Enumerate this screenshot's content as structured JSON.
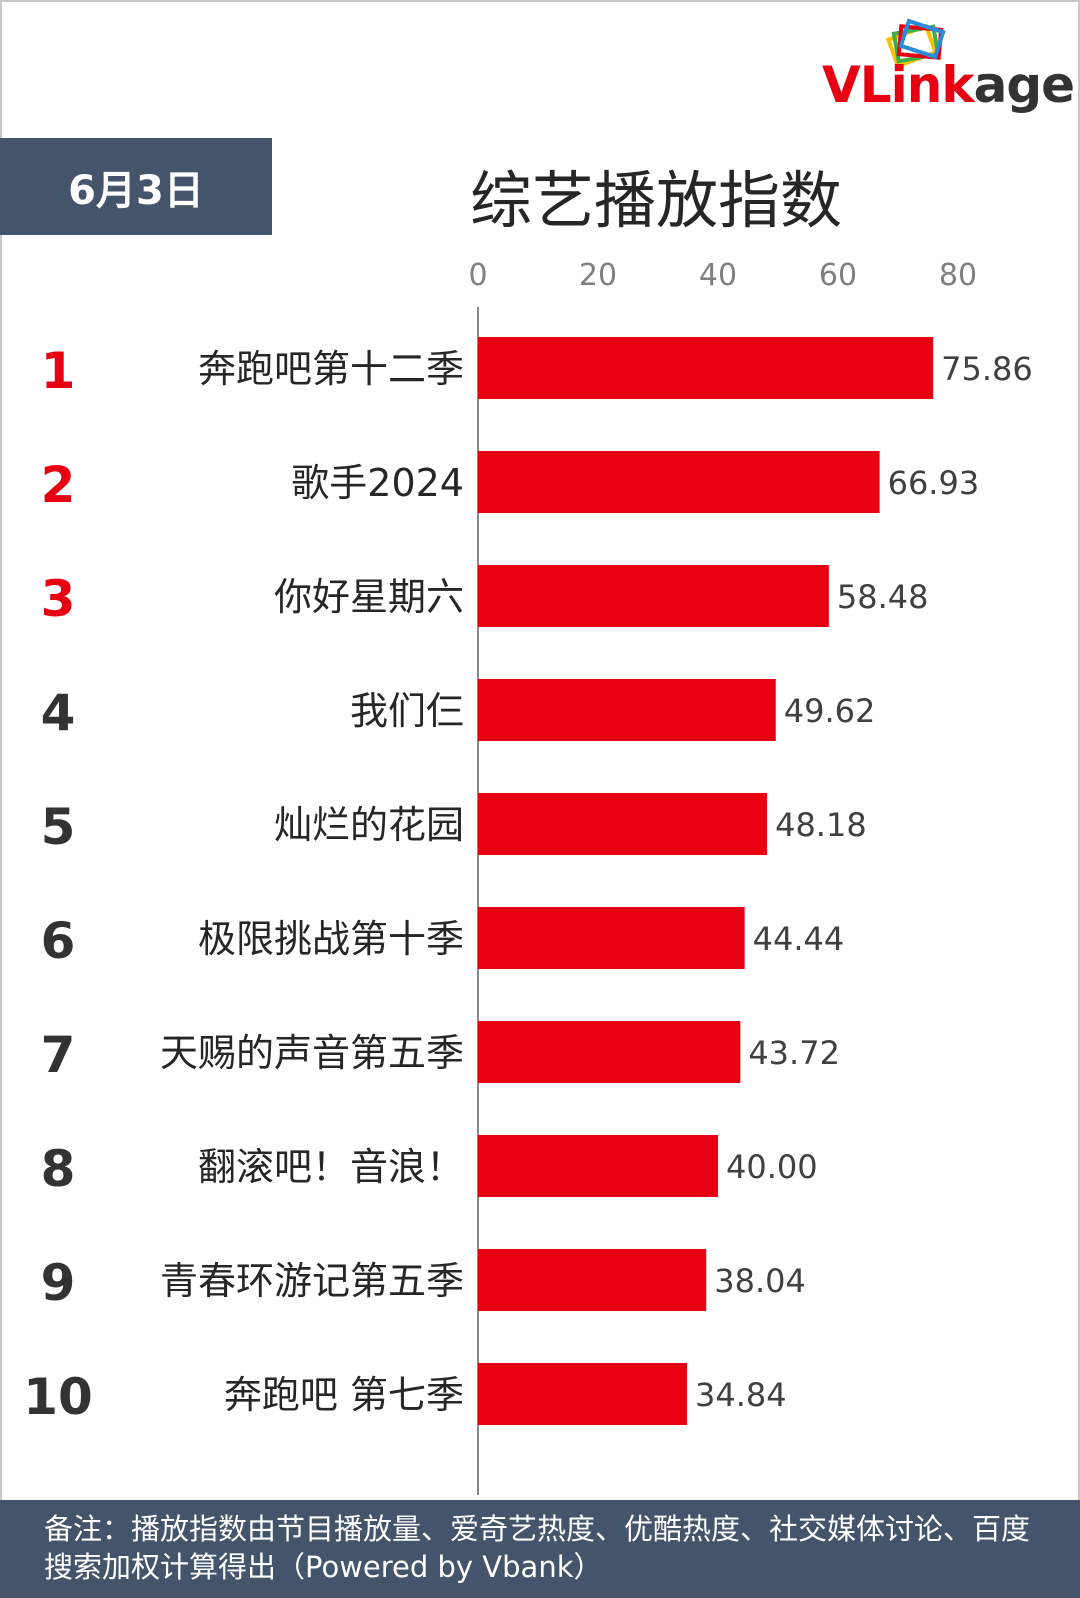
{
  "logo": {
    "text_v": "V",
    "text_l": "L",
    "text_i": "i",
    "text_rest_red": "nk",
    "text_rest_grey": "age"
  },
  "header": {
    "date": "6月3日",
    "title": "综艺播放指数"
  },
  "chart_data": {
    "type": "bar",
    "orientation": "horizontal",
    "categories": [
      "奔跑吧第十二季",
      "歌手2024",
      "你好星期六",
      "我们仨",
      "灿烂的花园",
      "极限挑战第十季",
      "天赐的声音第五季",
      "翻滚吧！音浪！",
      "青春环游记第五季",
      "奔跑吧 第七季"
    ],
    "ranks": [
      "1",
      "2",
      "3",
      "4",
      "5",
      "6",
      "7",
      "8",
      "9",
      "10"
    ],
    "values": [
      75.86,
      66.93,
      58.48,
      49.62,
      48.18,
      44.44,
      43.72,
      40.0,
      38.04,
      34.84
    ],
    "value_labels": [
      "75.86",
      "66.93",
      "58.48",
      "49.62",
      "48.18",
      "44.44",
      "43.72",
      "40.00",
      "38.04",
      "34.84"
    ],
    "x_ticks": [
      "0",
      "20",
      "40",
      "60",
      "80"
    ],
    "xlim": [
      0,
      80
    ],
    "grid": false,
    "bar_color": "#e60012",
    "rank_top_color": "#e60012",
    "rank_other_color": "#333333"
  },
  "footer": {
    "note": "备注：播放指数由节目播放量、爱奇艺热度、优酷热度、社交媒体讨论、百度搜索加权计算得出（Powered by Vbank）"
  }
}
